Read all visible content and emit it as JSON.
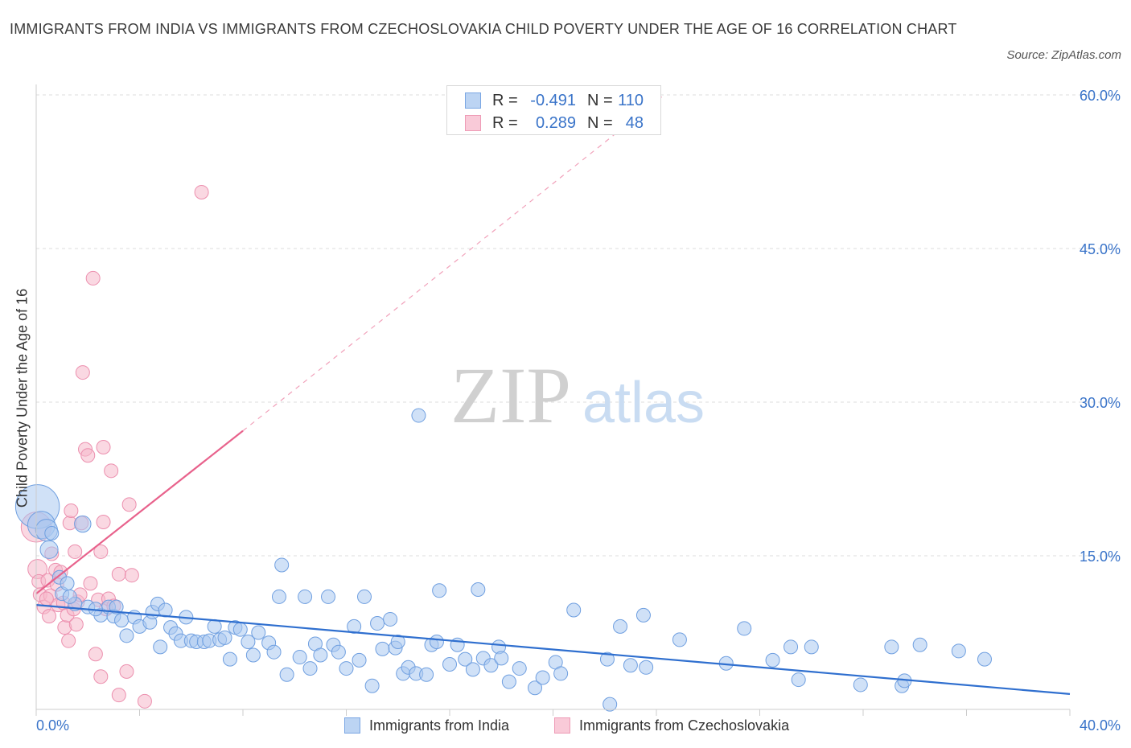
{
  "title": "IMMIGRANTS FROM INDIA VS IMMIGRANTS FROM CZECHOSLOVAKIA CHILD POVERTY UNDER THE AGE OF 16 CORRELATION CHART",
  "source": "Source: ZipAtlas.com",
  "watermark": {
    "zip": "ZIP",
    "atlas": "atlas"
  },
  "legend": {
    "india": {
      "r_label": "R =",
      "r_value": "-0.491",
      "n_label": "N =",
      "n_value": "110"
    },
    "czech": {
      "r_label": "R =",
      "r_value": "0.289",
      "n_label": "N =",
      "n_value": "48"
    }
  },
  "colors": {
    "india_fill": "#a9c8f0",
    "india_stroke": "#6f9fe0",
    "india_line": "#2f6fcf",
    "czech_fill": "#f6b8cb",
    "czech_stroke": "#ec8fae",
    "czech_line": "#e8628c",
    "accent_text": "#3a74c9"
  },
  "chart_data": {
    "type": "scatter",
    "title": "IMMIGRANTS FROM INDIA VS IMMIGRANTS FROM CZECHOSLOVAKIA CHILD POVERTY UNDER THE AGE OF 16 CORRELATION CHART",
    "xlabel": "",
    "ylabel": "Child Poverty Under the Age of 16",
    "xlim": [
      0,
      40
    ],
    "ylim": [
      0,
      60
    ],
    "x_tick_labels": [
      "0.0%",
      "40.0%"
    ],
    "y_tick_labels": [
      "15.0%",
      "30.0%",
      "45.0%",
      "60.0%"
    ],
    "grid": true,
    "legend_position": "bottom",
    "series": [
      {
        "name": "Immigrants from India",
        "regression": {
          "x0": 0,
          "y0": 10.2,
          "x1": 40,
          "y1": 1.5
        },
        "points": [
          [
            0.05,
            19.8
          ],
          [
            0.2,
            18.0
          ],
          [
            0.4,
            17.5
          ],
          [
            0.5,
            15.6
          ],
          [
            1.8,
            18.1
          ],
          [
            0.9,
            12.9
          ],
          [
            1.0,
            11.3
          ],
          [
            1.2,
            12.3
          ],
          [
            1.5,
            10.3
          ],
          [
            2.0,
            10.0
          ],
          [
            2.5,
            9.2
          ],
          [
            2.8,
            10.0
          ],
          [
            3.0,
            9.1
          ],
          [
            3.3,
            8.7
          ],
          [
            3.5,
            7.2
          ],
          [
            3.8,
            9.0
          ],
          [
            4.0,
            8.1
          ],
          [
            4.4,
            8.5
          ],
          [
            4.5,
            9.5
          ],
          [
            4.7,
            10.3
          ],
          [
            4.8,
            6.1
          ],
          [
            5.0,
            9.7
          ],
          [
            5.2,
            8.0
          ],
          [
            5.4,
            7.4
          ],
          [
            5.6,
            6.7
          ],
          [
            5.8,
            9.0
          ],
          [
            6.0,
            6.7
          ],
          [
            6.2,
            6.6
          ],
          [
            6.5,
            6.6
          ],
          [
            6.7,
            6.7
          ],
          [
            6.9,
            8.1
          ],
          [
            7.1,
            6.8
          ],
          [
            7.3,
            7.0
          ],
          [
            7.5,
            4.9
          ],
          [
            7.7,
            8.0
          ],
          [
            7.9,
            7.8
          ],
          [
            8.2,
            6.6
          ],
          [
            8.4,
            5.3
          ],
          [
            8.6,
            7.5
          ],
          [
            9.0,
            6.5
          ],
          [
            9.2,
            5.6
          ],
          [
            9.4,
            11.0
          ],
          [
            9.5,
            14.1
          ],
          [
            9.7,
            3.4
          ],
          [
            10.2,
            5.1
          ],
          [
            10.4,
            11.0
          ],
          [
            10.6,
            4.0
          ],
          [
            10.8,
            6.4
          ],
          [
            11.0,
            5.3
          ],
          [
            11.3,
            11.0
          ],
          [
            11.5,
            6.3
          ],
          [
            11.7,
            5.6
          ],
          [
            12.0,
            4.0
          ],
          [
            12.3,
            8.1
          ],
          [
            12.5,
            4.8
          ],
          [
            12.7,
            11.0
          ],
          [
            13.0,
            2.3
          ],
          [
            13.2,
            8.4
          ],
          [
            13.4,
            5.9
          ],
          [
            13.7,
            8.8
          ],
          [
            13.9,
            6.0
          ],
          [
            14.0,
            6.6
          ],
          [
            14.2,
            3.5
          ],
          [
            14.4,
            4.1
          ],
          [
            14.7,
            3.5
          ],
          [
            14.8,
            28.7
          ],
          [
            15.1,
            3.4
          ],
          [
            15.3,
            6.3
          ],
          [
            15.5,
            6.6
          ],
          [
            15.6,
            11.6
          ],
          [
            16.0,
            4.4
          ],
          [
            16.3,
            6.3
          ],
          [
            16.6,
            4.9
          ],
          [
            16.9,
            3.9
          ],
          [
            17.1,
            11.7
          ],
          [
            17.3,
            5.0
          ],
          [
            17.6,
            4.3
          ],
          [
            17.9,
            6.1
          ],
          [
            18.0,
            5.0
          ],
          [
            18.3,
            2.7
          ],
          [
            18.7,
            4.0
          ],
          [
            19.3,
            2.1
          ],
          [
            19.6,
            3.1
          ],
          [
            20.1,
            4.6
          ],
          [
            20.3,
            3.5
          ],
          [
            20.8,
            9.7
          ],
          [
            22.1,
            4.9
          ],
          [
            22.6,
            8.1
          ],
          [
            23.0,
            4.3
          ],
          [
            23.5,
            9.2
          ],
          [
            23.6,
            4.1
          ],
          [
            24.9,
            6.8
          ],
          [
            26.7,
            4.5
          ],
          [
            27.4,
            7.9
          ],
          [
            28.5,
            4.8
          ],
          [
            29.2,
            6.1
          ],
          [
            29.5,
            2.9
          ],
          [
            30.0,
            6.1
          ],
          [
            31.9,
            2.4
          ],
          [
            33.1,
            6.1
          ],
          [
            33.5,
            2.3
          ],
          [
            33.6,
            2.8
          ],
          [
            34.2,
            6.3
          ],
          [
            35.7,
            5.7
          ],
          [
            36.7,
            4.9
          ],
          [
            22.2,
            0.5
          ],
          [
            0.6,
            17.2
          ],
          [
            1.3,
            11.0
          ],
          [
            2.3,
            9.8
          ],
          [
            3.1,
            10.0
          ]
        ],
        "sizes": {
          "0": 3.2,
          "1": 2.0,
          "2": 1.6,
          "3": 1.3,
          "4": 1.2
        }
      },
      {
        "name": "Immigrants from Czechoslovakia",
        "regression": {
          "x0": 0,
          "y0": 11.3,
          "x1": 8,
          "y1": 27.2,
          "dashed_to": {
            "x": 24.3,
            "y": 60
          }
        },
        "points": [
          [
            0.0,
            17.8
          ],
          [
            0.05,
            13.7
          ],
          [
            0.1,
            12.5
          ],
          [
            0.15,
            11.2
          ],
          [
            0.3,
            10.0
          ],
          [
            0.45,
            12.6
          ],
          [
            0.5,
            9.1
          ],
          [
            0.55,
            11.1
          ],
          [
            0.6,
            15.2
          ],
          [
            0.75,
            13.6
          ],
          [
            0.85,
            10.2
          ],
          [
            0.95,
            13.4
          ],
          [
            1.05,
            10.4
          ],
          [
            1.1,
            8.0
          ],
          [
            1.2,
            9.2
          ],
          [
            1.25,
            6.7
          ],
          [
            1.3,
            18.2
          ],
          [
            1.35,
            19.4
          ],
          [
            1.45,
            9.8
          ],
          [
            1.5,
            15.4
          ],
          [
            1.55,
            8.3
          ],
          [
            1.6,
            10.5
          ],
          [
            1.7,
            11.2
          ],
          [
            1.75,
            18.2
          ],
          [
            1.8,
            32.9
          ],
          [
            1.9,
            25.4
          ],
          [
            2.0,
            24.8
          ],
          [
            2.1,
            12.3
          ],
          [
            2.2,
            42.1
          ],
          [
            2.3,
            5.4
          ],
          [
            2.4,
            10.7
          ],
          [
            2.5,
            3.2
          ],
          [
            2.5,
            15.4
          ],
          [
            2.6,
            18.3
          ],
          [
            2.6,
            25.6
          ],
          [
            2.7,
            9.8
          ],
          [
            2.8,
            10.8
          ],
          [
            2.9,
            23.3
          ],
          [
            3.0,
            10.1
          ],
          [
            3.2,
            1.4
          ],
          [
            3.2,
            13.2
          ],
          [
            3.5,
            3.7
          ],
          [
            3.6,
            20.0
          ],
          [
            3.7,
            13.1
          ],
          [
            4.2,
            0.8
          ],
          [
            6.4,
            50.5
          ],
          [
            0.4,
            10.8
          ],
          [
            0.8,
            12.2
          ]
        ],
        "sizes": {
          "0": 2.2,
          "1": 1.4
        }
      }
    ]
  }
}
